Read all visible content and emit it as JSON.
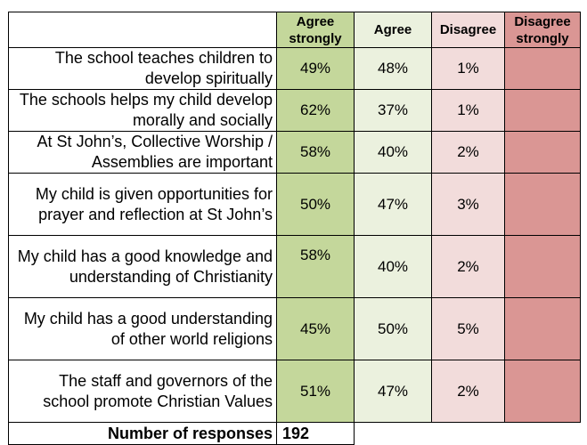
{
  "headers": {
    "agree_strongly": "Agree strongly",
    "agree": "Agree",
    "disagree": "Disagree",
    "disagree_strongly": "Disagree strongly"
  },
  "rows": [
    {
      "question": "The school teaches children to develop spiritually",
      "agree_strongly": "49%",
      "agree": "48%",
      "disagree": "1%",
      "disagree_strongly": ""
    },
    {
      "question": "The schools helps my child develop morally and socially",
      "agree_strongly": "62%",
      "agree": "37%",
      "disagree": "1%",
      "disagree_strongly": ""
    },
    {
      "question": "At St John’s, Collective Worship / Assemblies are important",
      "agree_strongly": "58%",
      "agree": "40%",
      "disagree": "2%",
      "disagree_strongly": ""
    },
    {
      "question": "My child is given opportunities for prayer and reflection at St John’s",
      "agree_strongly": "50%",
      "agree": "47%",
      "disagree": "3%",
      "disagree_strongly": ""
    },
    {
      "question": "My child has a good knowledge and understanding of Christianity",
      "agree_strongly": "58%",
      "agree": "40%",
      "disagree": "2%",
      "disagree_strongly": ""
    },
    {
      "question": "My child has a good understanding of other world religions",
      "agree_strongly": "45%",
      "agree": "50%",
      "disagree": "5%",
      "disagree_strongly": ""
    },
    {
      "question": "The staff and governors of the school promote Christian Values",
      "agree_strongly": "51%",
      "agree": "47%",
      "disagree": "2%",
      "disagree_strongly": ""
    }
  ],
  "responses": {
    "label": "Number of responses",
    "value": "192"
  },
  "colors": {
    "agree_strongly": "#c4d79b",
    "agree": "#ebf1de",
    "disagree": "#f2dcdb",
    "disagree_strongly": "#da9694"
  }
}
